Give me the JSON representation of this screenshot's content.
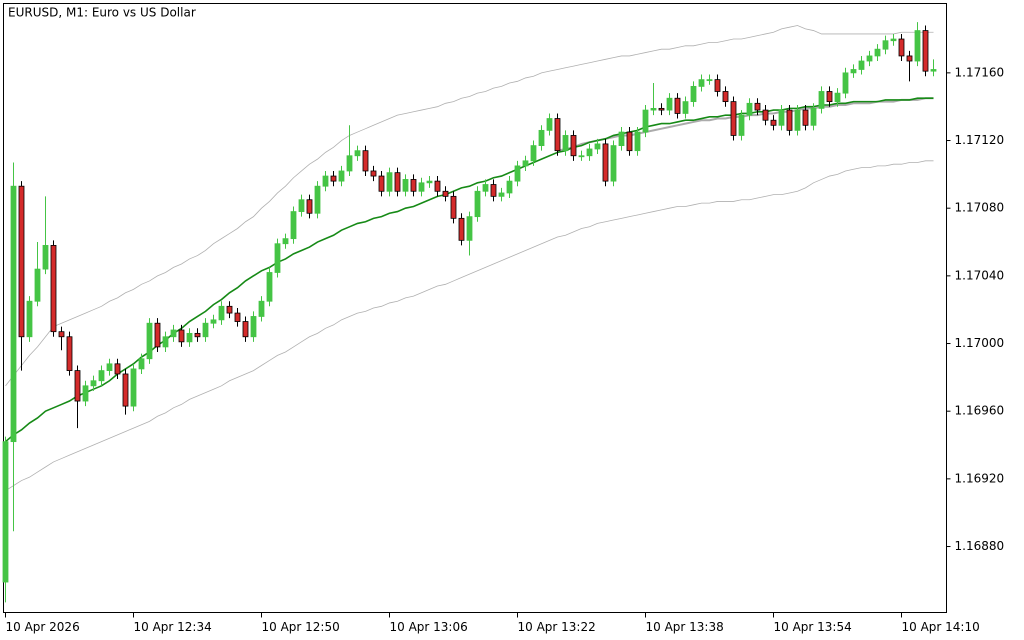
{
  "chart_data": {
    "type": "candlestick",
    "title": "EURUSD, M1:  Euro vs US Dollar",
    "bull_color": "#45c445",
    "bear_color": "#d42b2b",
    "categories": [
      "10 Apr 2026",
      null,
      null,
      null,
      null,
      null,
      null,
      null,
      null,
      null,
      null,
      null,
      null,
      null,
      null,
      null,
      "10 Apr 12:34",
      null,
      null,
      null,
      null,
      null,
      null,
      null,
      null,
      null,
      null,
      null,
      null,
      null,
      null,
      null,
      "10 Apr 12:50",
      null,
      null,
      null,
      null,
      null,
      null,
      null,
      null,
      null,
      null,
      null,
      null,
      null,
      null,
      null,
      "10 Apr 13:06",
      null,
      null,
      null,
      null,
      null,
      null,
      null,
      null,
      null,
      null,
      null,
      null,
      null,
      null,
      null,
      "10 Apr 13:22",
      null,
      null,
      null,
      null,
      null,
      null,
      null,
      null,
      null,
      null,
      null,
      null,
      null,
      null,
      null,
      "10 Apr 13:38",
      null,
      null,
      null,
      null,
      null,
      null,
      null,
      null,
      null,
      null,
      null,
      null,
      null,
      null,
      null,
      "10 Apr 13:54",
      null,
      null,
      null,
      null,
      null,
      null,
      null,
      null,
      null,
      null,
      null,
      null,
      null,
      null,
      null,
      "10 Apr 14:10",
      null,
      null,
      null,
      null
    ],
    "open": [
      1.16859,
      1.16942,
      1.17093,
      1.17004,
      1.17025,
      1.17044,
      1.17058,
      1.17007,
      1.17004,
      1.16984,
      1.16966,
      1.16975,
      1.16978,
      1.16984,
      1.16988,
      1.16982,
      1.16963,
      1.16985,
      1.16991,
      1.17012,
      1.16998,
      1.17004,
      1.17008,
      1.17001,
      1.17006,
      1.17004,
      1.17012,
      1.17014,
      1.17022,
      1.17018,
      1.17013,
      1.17004,
      1.17016,
      1.17025,
      1.17042,
      1.17059,
      1.17062,
      1.17078,
      1.17085,
      1.17077,
      1.17093,
      1.17099,
      1.17096,
      1.17102,
      1.17111,
      1.17114,
      1.17102,
      1.17099,
      1.1709,
      1.17101,
      1.1709,
      1.17097,
      1.1709,
      1.17095,
      1.17096,
      1.1709,
      1.17087,
      1.17074,
      1.17061,
      1.17075,
      1.1709,
      1.17094,
      1.17087,
      1.17089,
      1.17096,
      1.17105,
      1.17108,
      1.17117,
      1.17126,
      1.17133,
      1.17114,
      1.17123,
      1.17111,
      1.17111,
      1.17115,
      1.17118,
      1.17096,
      1.17117,
      1.17125,
      1.17114,
      1.17125,
      1.17138,
      1.17139,
      1.17138,
      1.17145,
      1.17136,
      1.17143,
      1.17152,
      1.17156,
      1.17156,
      1.17149,
      1.17143,
      1.17123,
      1.17135,
      1.17142,
      1.17138,
      1.17132,
      1.17129,
      1.17138,
      1.17126,
      1.17138,
      1.17129,
      1.17139,
      1.17149,
      1.17143,
      1.17148,
      1.1716,
      1.17162,
      1.17167,
      1.1717,
      1.17174,
      1.17179,
      1.1718,
      1.1717,
      1.17167,
      1.17185,
      1.17161
    ],
    "high": [
      1.16945,
      1.17107,
      1.17096,
      1.17028,
      1.1706,
      1.17087,
      1.17061,
      1.1701,
      1.17007,
      1.16987,
      1.16978,
      1.16981,
      1.16987,
      1.16991,
      1.16991,
      1.16985,
      1.16988,
      1.16994,
      1.17015,
      1.17015,
      1.17007,
      1.17011,
      1.17011,
      1.17009,
      1.17009,
      1.17015,
      1.17017,
      1.17025,
      1.17025,
      1.17021,
      1.17016,
      1.17019,
      1.17028,
      1.17045,
      1.17062,
      1.17065,
      1.17081,
      1.17088,
      1.17088,
      1.17096,
      1.17102,
      1.17102,
      1.17105,
      1.17129,
      1.17117,
      1.17117,
      1.17105,
      1.17102,
      1.17104,
      1.17104,
      1.171,
      1.171,
      1.17098,
      1.17099,
      1.17099,
      1.17093,
      1.1709,
      1.17077,
      1.17078,
      1.17093,
      1.17097,
      1.17097,
      1.17092,
      1.17099,
      1.17108,
      1.17111,
      1.1712,
      1.17129,
      1.17136,
      1.17136,
      1.17126,
      1.17126,
      1.17114,
      1.17118,
      1.17121,
      1.17121,
      1.1712,
      1.17128,
      1.17128,
      1.17128,
      1.17141,
      1.17154,
      1.17142,
      1.17148,
      1.17148,
      1.17146,
      1.17155,
      1.17159,
      1.17159,
      1.17159,
      1.17152,
      1.17146,
      1.17138,
      1.17145,
      1.17145,
      1.17141,
      1.17135,
      1.17141,
      1.17141,
      1.17141,
      1.17141,
      1.17142,
      1.17152,
      1.17152,
      1.17151,
      1.17163,
      1.17165,
      1.1717,
      1.17173,
      1.17177,
      1.17182,
      1.17183,
      1.17183,
      1.17173,
      1.1719,
      1.17188,
      1.17168
    ],
    "low": [
      1.16847,
      1.16889,
      1.16984,
      1.17001,
      1.17022,
      1.17041,
      1.17004,
      1.16996,
      1.16981,
      1.1695,
      1.16963,
      1.16972,
      1.16975,
      1.16981,
      1.16979,
      1.16958,
      1.1696,
      1.16982,
      1.16988,
      1.16995,
      1.16995,
      1.17001,
      1.16998,
      1.16998,
      1.17001,
      1.17001,
      1.17009,
      1.17011,
      1.17015,
      1.1701,
      1.17001,
      1.17001,
      1.17013,
      1.17022,
      1.17039,
      1.17056,
      1.17059,
      1.17075,
      1.17074,
      1.17074,
      1.1709,
      1.17093,
      1.17093,
      1.17099,
      1.17108,
      1.17099,
      1.17096,
      1.17087,
      1.17087,
      1.17087,
      1.17087,
      1.17087,
      1.17087,
      1.17092,
      1.17087,
      1.17084,
      1.17071,
      1.17058,
      1.17052,
      1.17072,
      1.17087,
      1.17084,
      1.17084,
      1.17086,
      1.17093,
      1.17102,
      1.17105,
      1.17114,
      1.17123,
      1.17111,
      1.17111,
      1.17108,
      1.17108,
      1.17108,
      1.17112,
      1.17093,
      1.17093,
      1.17114,
      1.17111,
      1.17111,
      1.17122,
      1.17135,
      1.17135,
      1.17135,
      1.17133,
      1.17133,
      1.1714,
      1.17149,
      1.17153,
      1.17146,
      1.1714,
      1.1712,
      1.1712,
      1.17132,
      1.17135,
      1.17129,
      1.17126,
      1.17126,
      1.17123,
      1.17123,
      1.17126,
      1.17126,
      1.17136,
      1.1714,
      1.1714,
      1.17145,
      1.17157,
      1.17159,
      1.17164,
      1.17167,
      1.17171,
      1.17176,
      1.17167,
      1.17155,
      1.17164,
      1.17158,
      1.17158
    ],
    "close": [
      1.16942,
      1.17093,
      1.17004,
      1.17025,
      1.17044,
      1.17058,
      1.17007,
      1.17004,
      1.16984,
      1.16966,
      1.16975,
      1.16978,
      1.16984,
      1.16988,
      1.16982,
      1.16963,
      1.16985,
      1.16991,
      1.17012,
      1.16998,
      1.17004,
      1.17008,
      1.17001,
      1.17006,
      1.17004,
      1.17012,
      1.17014,
      1.17022,
      1.17018,
      1.17013,
      1.17004,
      1.17016,
      1.17025,
      1.17042,
      1.17059,
      1.17062,
      1.17078,
      1.17085,
      1.17077,
      1.17093,
      1.17099,
      1.17096,
      1.17102,
      1.17111,
      1.17114,
      1.17102,
      1.17099,
      1.1709,
      1.17101,
      1.1709,
      1.17097,
      1.1709,
      1.17095,
      1.17096,
      1.1709,
      1.17087,
      1.17074,
      1.17061,
      1.17075,
      1.1709,
      1.17094,
      1.17087,
      1.17089,
      1.17096,
      1.17105,
      1.17108,
      1.17117,
      1.17126,
      1.17133,
      1.17114,
      1.17123,
      1.17111,
      1.17111,
      1.17115,
      1.17118,
      1.17096,
      1.17117,
      1.17125,
      1.17114,
      1.17125,
      1.17138,
      1.17139,
      1.17138,
      1.17145,
      1.17136,
      1.17143,
      1.17152,
      1.17156,
      1.17156,
      1.17149,
      1.17143,
      1.17123,
      1.17135,
      1.17142,
      1.17138,
      1.17132,
      1.17129,
      1.17138,
      1.17126,
      1.17138,
      1.17129,
      1.17139,
      1.17149,
      1.17143,
      1.17148,
      1.1716,
      1.17162,
      1.17167,
      1.1717,
      1.17174,
      1.17179,
      1.1718,
      1.1717,
      1.17167,
      1.17185,
      1.17161,
      1.17162
    ],
    "lines": [
      {
        "color": "#b0b0b0",
        "width": 0.8,
        "values": [
          1.16975,
          1.16981,
          1.16987,
          1.16993,
          1.16998,
          1.17004,
          1.1701,
          1.17012,
          1.17014,
          1.17016,
          1.17018,
          1.1702,
          1.17022,
          1.17025,
          1.17027,
          1.1703,
          1.17032,
          1.17035,
          1.17037,
          1.1704,
          1.17042,
          1.17045,
          1.17047,
          1.1705,
          1.17052,
          1.17055,
          1.17059,
          1.17062,
          1.17065,
          1.17068,
          1.17072,
          1.17075,
          1.1708,
          1.17084,
          1.17089,
          1.17093,
          1.17098,
          1.17102,
          1.17106,
          1.17109,
          1.17113,
          1.17116,
          1.1712,
          1.17123,
          1.17125,
          1.17127,
          1.17129,
          1.17131,
          1.17133,
          1.17135,
          1.17136,
          1.17137,
          1.17138,
          1.17139,
          1.1714,
          1.17142,
          1.17143,
          1.17145,
          1.17146,
          1.17148,
          1.17149,
          1.17151,
          1.17152,
          1.17154,
          1.17155,
          1.17157,
          1.17158,
          1.1716,
          1.17161,
          1.17162,
          1.17163,
          1.17164,
          1.17165,
          1.17166,
          1.17167,
          1.17168,
          1.17169,
          1.1717,
          1.1717,
          1.17171,
          1.17172,
          1.17173,
          1.17174,
          1.17174,
          1.17175,
          1.17176,
          1.17176,
          1.17177,
          1.17178,
          1.17178,
          1.17179,
          1.1718,
          1.1718,
          1.17181,
          1.17182,
          1.17183,
          1.17184,
          1.17186,
          1.17187,
          1.17188,
          1.17186,
          1.17185,
          1.17183,
          1.17183,
          1.17183,
          1.17183,
          1.17183,
          1.17183,
          1.17183,
          1.17183,
          1.17183,
          1.17183,
          1.17184,
          1.17184,
          1.17184,
          1.17184,
          1.17184
        ]
      },
      {
        "color": "#b0b0b0",
        "width": 0.8,
        "values": [
          1.16913,
          1.16916,
          1.16919,
          1.16921,
          1.16924,
          1.16927,
          1.1693,
          1.16932,
          1.16934,
          1.16936,
          1.16938,
          1.1694,
          1.16942,
          1.16944,
          1.16946,
          1.16948,
          1.1695,
          1.16952,
          1.16954,
          1.16957,
          1.16959,
          1.16962,
          1.16964,
          1.16967,
          1.16969,
          1.16971,
          1.16973,
          1.16975,
          1.16978,
          1.1698,
          1.16982,
          1.16984,
          1.16987,
          1.1699,
          1.16993,
          1.16995,
          1.16998,
          1.17001,
          1.17004,
          1.17006,
          1.17009,
          1.17011,
          1.17014,
          1.17016,
          1.17018,
          1.17019,
          1.17021,
          1.17022,
          1.17024,
          1.17025,
          1.17027,
          1.17028,
          1.1703,
          1.17032,
          1.17034,
          1.17035,
          1.17037,
          1.17039,
          1.17041,
          1.17043,
          1.17045,
          1.17047,
          1.17049,
          1.17051,
          1.17053,
          1.17055,
          1.17057,
          1.17059,
          1.17061,
          1.17063,
          1.17064,
          1.17066,
          1.17068,
          1.17069,
          1.17071,
          1.17072,
          1.17073,
          1.17074,
          1.17075,
          1.17076,
          1.17077,
          1.17078,
          1.17079,
          1.1708,
          1.17081,
          1.17081,
          1.17082,
          1.17083,
          1.17083,
          1.17084,
          1.17084,
          1.17084,
          1.17085,
          1.17085,
          1.17086,
          1.17087,
          1.17088,
          1.17088,
          1.17089,
          1.1709,
          1.17092,
          1.17095,
          1.17097,
          1.17099,
          1.171,
          1.17102,
          1.17103,
          1.17104,
          1.17104,
          1.17105,
          1.17105,
          1.17106,
          1.17106,
          1.17107,
          1.17107,
          1.17108,
          1.17108
        ]
      },
      {
        "color": "#ababab",
        "width": 2,
        "values": [
          null,
          null,
          null,
          null,
          null,
          null,
          null,
          null,
          null,
          null,
          null,
          null,
          null,
          null,
          null,
          null,
          null,
          null,
          null,
          null,
          null,
          null,
          null,
          null,
          null,
          null,
          null,
          null,
          null,
          null,
          null,
          null,
          null,
          null,
          null,
          null,
          null,
          null,
          null,
          null,
          null,
          null,
          null,
          null,
          null,
          null,
          null,
          null,
          null,
          null,
          null,
          null,
          null,
          null,
          null,
          null,
          null,
          null,
          null,
          null,
          null,
          null,
          null,
          null,
          null,
          null,
          null,
          null,
          null,
          1.17114,
          1.17115,
          1.17116,
          1.17118,
          1.17119,
          1.1712,
          1.17121,
          1.17122,
          1.17123,
          1.17123,
          1.17124,
          1.17125,
          1.17126,
          1.17127,
          1.17128,
          1.17129,
          1.1713,
          1.17131,
          1.17132,
          1.17132,
          1.17133,
          1.17133,
          1.17134,
          1.17134,
          1.17135,
          1.17135,
          1.17136,
          1.17136,
          1.17137,
          1.17137,
          1.17138,
          1.17139,
          1.17139,
          1.1714,
          1.1714,
          1.17141,
          1.17141,
          1.17142,
          1.17142,
          1.17142,
          1.17143,
          1.17143,
          1.17143,
          1.17144,
          1.17144,
          1.17144,
          1.17145,
          1.17145
        ]
      },
      {
        "color": "#168a16",
        "width": 1.6,
        "values": [
          1.16942,
          1.16946,
          1.16949,
          1.16953,
          1.16956,
          1.1696,
          1.16962,
          1.16964,
          1.16966,
          1.16969,
          1.16971,
          1.16973,
          1.16975,
          1.16978,
          1.16982,
          1.16985,
          1.16988,
          1.16992,
          1.16995,
          1.16999,
          1.17002,
          1.17006,
          1.17009,
          1.17013,
          1.17016,
          1.17019,
          1.17023,
          1.17026,
          1.1703,
          1.17033,
          1.17037,
          1.1704,
          1.17043,
          1.17045,
          1.17048,
          1.1705,
          1.17053,
          1.17055,
          1.17057,
          1.1706,
          1.17062,
          1.17064,
          1.17067,
          1.17069,
          1.17071,
          1.17072,
          1.17074,
          1.17075,
          1.17077,
          1.17078,
          1.1708,
          1.17081,
          1.17083,
          1.17085,
          1.17087,
          1.17088,
          1.1709,
          1.17092,
          1.17093,
          1.17095,
          1.17096,
          1.17098,
          1.17099,
          1.17101,
          1.17103,
          1.17105,
          1.17107,
          1.17109,
          1.17111,
          1.17113,
          1.17114,
          1.17116,
          1.17117,
          1.17119,
          1.1712,
          1.17121,
          1.17123,
          1.17124,
          1.17125,
          1.17126,
          1.17128,
          1.17129,
          1.1713,
          1.1713,
          1.17131,
          1.17132,
          1.17132,
          1.17133,
          1.17134,
          1.17134,
          1.17135,
          1.17135,
          1.17136,
          1.17136,
          1.17137,
          1.17137,
          1.17138,
          1.17138,
          1.17139,
          1.17139,
          1.1714,
          1.1714,
          1.17141,
          1.17141,
          1.17142,
          1.17142,
          1.17143,
          1.17143,
          1.17143,
          1.17143,
          1.17144,
          1.17144,
          1.17144,
          1.17144,
          1.17145,
          1.17145,
          1.17145
        ]
      }
    ],
    "ylim": [
      1.16841,
      1.17201
    ],
    "yticks": [
      {
        "value": 1.1688,
        "label": "1.16880"
      },
      {
        "value": 1.1692,
        "label": "1.16920"
      },
      {
        "value": 1.1696,
        "label": "1.16960"
      },
      {
        "value": 1.17,
        "label": "1.17000"
      },
      {
        "value": 1.1704,
        "label": "1.17040"
      },
      {
        "value": 1.1708,
        "label": "1.17080"
      },
      {
        "value": 1.1712,
        "label": "1.17120"
      },
      {
        "value": 1.1716,
        "label": "1.17160"
      }
    ],
    "grid": false
  }
}
